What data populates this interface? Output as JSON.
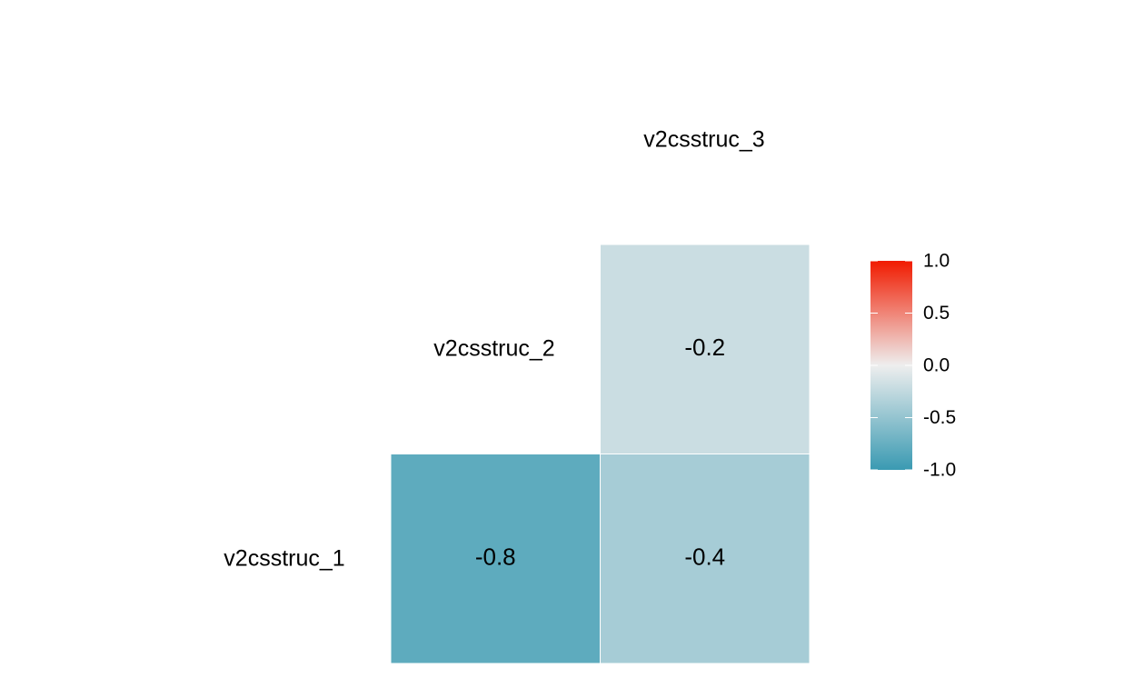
{
  "chart_data": {
    "type": "heatmap",
    "title": "",
    "xlabel": "",
    "ylabel": "",
    "variables": [
      "v2csstruc_1",
      "v2csstruc_2",
      "v2csstruc_3"
    ],
    "cells": [
      {
        "row": "v2csstruc_1",
        "col": "v2csstruc_2",
        "value": -0.8,
        "label": "-0.8"
      },
      {
        "row": "v2csstruc_1",
        "col": "v2csstruc_3",
        "value": -0.4,
        "label": "-0.4"
      },
      {
        "row": "v2csstruc_2",
        "col": "v2csstruc_3",
        "value": -0.2,
        "label": "-0.2"
      }
    ],
    "colorscale": {
      "limits": [
        -1,
        1
      ],
      "low": "#3A9AB2",
      "mid": "#EEEEEE",
      "high": "#F11B00",
      "breaks": [
        1.0,
        0.5,
        0.0,
        -0.5,
        -1.0
      ],
      "break_labels": [
        "1.0",
        "0.5",
        "0.0",
        "-0.5",
        "-1.0"
      ]
    },
    "grid": false,
    "legend_position": "right"
  }
}
